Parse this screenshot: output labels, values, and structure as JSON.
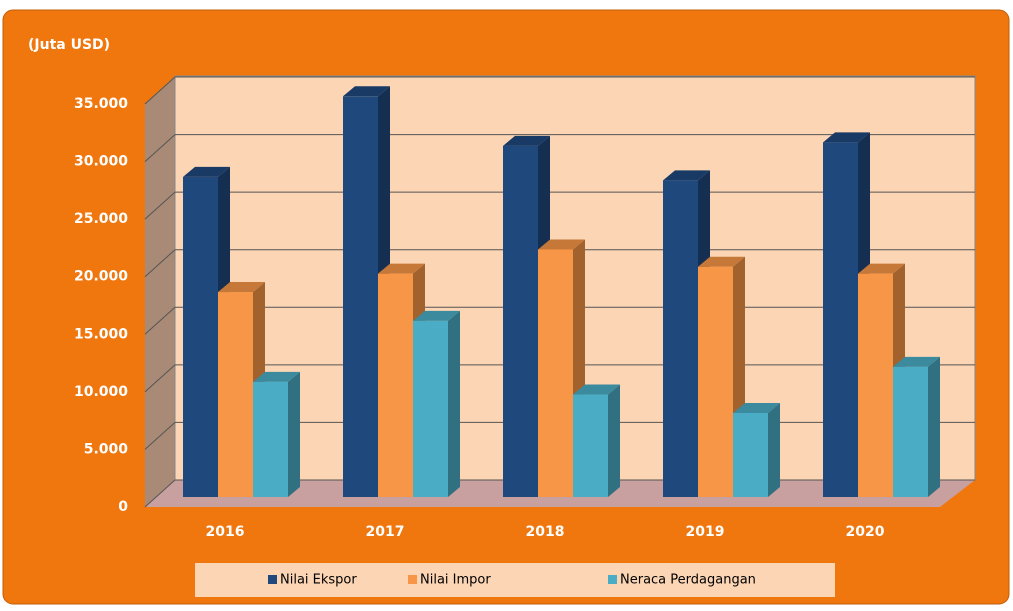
{
  "chart_data": {
    "type": "bar3d",
    "title": "(Juta USD)",
    "categories": [
      "2016",
      "2017",
      "2018",
      "2019",
      "2020"
    ],
    "series": [
      {
        "name": "Nilai Ekspor",
        "color": "#1f497d",
        "values": [
          27800,
          34800,
          30500,
          27500,
          30800
        ]
      },
      {
        "name": "Nilai Impor",
        "color": "#f79646",
        "values": [
          17800,
          19400,
          21500,
          20000,
          19400
        ]
      },
      {
        "name": "Neraca Perdagangan",
        "color": "#4bacc6",
        "values": [
          10000,
          15300,
          8900,
          7300,
          11300
        ]
      }
    ],
    "ylim": [
      0,
      35000
    ],
    "yticks": [
      0,
      {
        "value": 5000,
        "label": "5.000"
      },
      {
        "value": 10000,
        "label": "10.000"
      },
      {
        "value": 15000,
        "label": "15.000"
      },
      {
        "value": 20000,
        "label": "20.000"
      },
      {
        "value": 25000,
        "label": "25.000"
      },
      {
        "value": 30000,
        "label": "30.000"
      },
      {
        "value": 35000,
        "label": "35.000"
      }
    ],
    "grid": true,
    "legend": "bottom"
  }
}
